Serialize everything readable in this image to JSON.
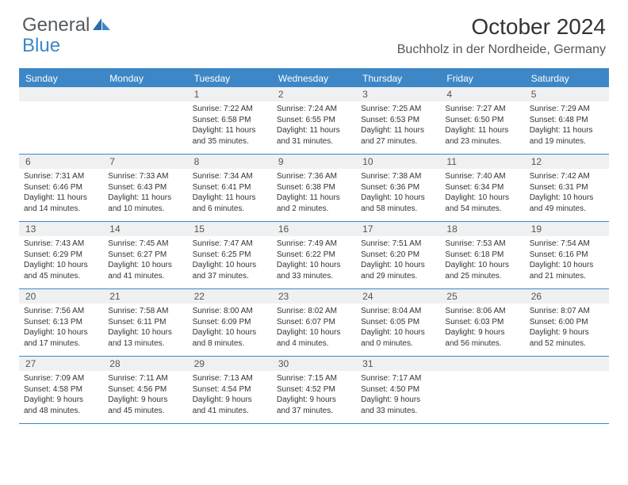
{
  "logo": {
    "word1": "General",
    "word2": "Blue"
  },
  "title": "October 2024",
  "location": "Buchholz in der Nordheide, Germany",
  "colors": {
    "accent": "#3d87c7",
    "headerText": "#ffffff",
    "dayNumBg": "#eff0f1",
    "bodyText": "#333333"
  },
  "weekdays": [
    "Sunday",
    "Monday",
    "Tuesday",
    "Wednesday",
    "Thursday",
    "Friday",
    "Saturday"
  ],
  "weeks": [
    [
      {},
      {},
      {
        "n": "1",
        "sr": "Sunrise: 7:22 AM",
        "ss": "Sunset: 6:58 PM",
        "dl": "Daylight: 11 hours and 35 minutes."
      },
      {
        "n": "2",
        "sr": "Sunrise: 7:24 AM",
        "ss": "Sunset: 6:55 PM",
        "dl": "Daylight: 11 hours and 31 minutes."
      },
      {
        "n": "3",
        "sr": "Sunrise: 7:25 AM",
        "ss": "Sunset: 6:53 PM",
        "dl": "Daylight: 11 hours and 27 minutes."
      },
      {
        "n": "4",
        "sr": "Sunrise: 7:27 AM",
        "ss": "Sunset: 6:50 PM",
        "dl": "Daylight: 11 hours and 23 minutes."
      },
      {
        "n": "5",
        "sr": "Sunrise: 7:29 AM",
        "ss": "Sunset: 6:48 PM",
        "dl": "Daylight: 11 hours and 19 minutes."
      }
    ],
    [
      {
        "n": "6",
        "sr": "Sunrise: 7:31 AM",
        "ss": "Sunset: 6:46 PM",
        "dl": "Daylight: 11 hours and 14 minutes."
      },
      {
        "n": "7",
        "sr": "Sunrise: 7:33 AM",
        "ss": "Sunset: 6:43 PM",
        "dl": "Daylight: 11 hours and 10 minutes."
      },
      {
        "n": "8",
        "sr": "Sunrise: 7:34 AM",
        "ss": "Sunset: 6:41 PM",
        "dl": "Daylight: 11 hours and 6 minutes."
      },
      {
        "n": "9",
        "sr": "Sunrise: 7:36 AM",
        "ss": "Sunset: 6:38 PM",
        "dl": "Daylight: 11 hours and 2 minutes."
      },
      {
        "n": "10",
        "sr": "Sunrise: 7:38 AM",
        "ss": "Sunset: 6:36 PM",
        "dl": "Daylight: 10 hours and 58 minutes."
      },
      {
        "n": "11",
        "sr": "Sunrise: 7:40 AM",
        "ss": "Sunset: 6:34 PM",
        "dl": "Daylight: 10 hours and 54 minutes."
      },
      {
        "n": "12",
        "sr": "Sunrise: 7:42 AM",
        "ss": "Sunset: 6:31 PM",
        "dl": "Daylight: 10 hours and 49 minutes."
      }
    ],
    [
      {
        "n": "13",
        "sr": "Sunrise: 7:43 AM",
        "ss": "Sunset: 6:29 PM",
        "dl": "Daylight: 10 hours and 45 minutes."
      },
      {
        "n": "14",
        "sr": "Sunrise: 7:45 AM",
        "ss": "Sunset: 6:27 PM",
        "dl": "Daylight: 10 hours and 41 minutes."
      },
      {
        "n": "15",
        "sr": "Sunrise: 7:47 AM",
        "ss": "Sunset: 6:25 PM",
        "dl": "Daylight: 10 hours and 37 minutes."
      },
      {
        "n": "16",
        "sr": "Sunrise: 7:49 AM",
        "ss": "Sunset: 6:22 PM",
        "dl": "Daylight: 10 hours and 33 minutes."
      },
      {
        "n": "17",
        "sr": "Sunrise: 7:51 AM",
        "ss": "Sunset: 6:20 PM",
        "dl": "Daylight: 10 hours and 29 minutes."
      },
      {
        "n": "18",
        "sr": "Sunrise: 7:53 AM",
        "ss": "Sunset: 6:18 PM",
        "dl": "Daylight: 10 hours and 25 minutes."
      },
      {
        "n": "19",
        "sr": "Sunrise: 7:54 AM",
        "ss": "Sunset: 6:16 PM",
        "dl": "Daylight: 10 hours and 21 minutes."
      }
    ],
    [
      {
        "n": "20",
        "sr": "Sunrise: 7:56 AM",
        "ss": "Sunset: 6:13 PM",
        "dl": "Daylight: 10 hours and 17 minutes."
      },
      {
        "n": "21",
        "sr": "Sunrise: 7:58 AM",
        "ss": "Sunset: 6:11 PM",
        "dl": "Daylight: 10 hours and 13 minutes."
      },
      {
        "n": "22",
        "sr": "Sunrise: 8:00 AM",
        "ss": "Sunset: 6:09 PM",
        "dl": "Daylight: 10 hours and 8 minutes."
      },
      {
        "n": "23",
        "sr": "Sunrise: 8:02 AM",
        "ss": "Sunset: 6:07 PM",
        "dl": "Daylight: 10 hours and 4 minutes."
      },
      {
        "n": "24",
        "sr": "Sunrise: 8:04 AM",
        "ss": "Sunset: 6:05 PM",
        "dl": "Daylight: 10 hours and 0 minutes."
      },
      {
        "n": "25",
        "sr": "Sunrise: 8:06 AM",
        "ss": "Sunset: 6:03 PM",
        "dl": "Daylight: 9 hours and 56 minutes."
      },
      {
        "n": "26",
        "sr": "Sunrise: 8:07 AM",
        "ss": "Sunset: 6:00 PM",
        "dl": "Daylight: 9 hours and 52 minutes."
      }
    ],
    [
      {
        "n": "27",
        "sr": "Sunrise: 7:09 AM",
        "ss": "Sunset: 4:58 PM",
        "dl": "Daylight: 9 hours and 48 minutes."
      },
      {
        "n": "28",
        "sr": "Sunrise: 7:11 AM",
        "ss": "Sunset: 4:56 PM",
        "dl": "Daylight: 9 hours and 45 minutes."
      },
      {
        "n": "29",
        "sr": "Sunrise: 7:13 AM",
        "ss": "Sunset: 4:54 PM",
        "dl": "Daylight: 9 hours and 41 minutes."
      },
      {
        "n": "30",
        "sr": "Sunrise: 7:15 AM",
        "ss": "Sunset: 4:52 PM",
        "dl": "Daylight: 9 hours and 37 minutes."
      },
      {
        "n": "31",
        "sr": "Sunrise: 7:17 AM",
        "ss": "Sunset: 4:50 PM",
        "dl": "Daylight: 9 hours and 33 minutes."
      },
      {},
      {}
    ]
  ]
}
